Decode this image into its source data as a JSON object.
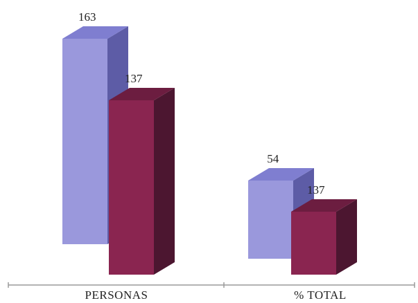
{
  "chart_data": {
    "type": "bar",
    "style": "3d-clustered-column",
    "categories": [
      "PERSONAS",
      "% TOTAL"
    ],
    "series": [
      {
        "values": [
          163,
          54
        ],
        "labels": [
          "163",
          "54"
        ],
        "color": "#9a98dc",
        "side_color": "#5d5ca6",
        "top_color": "#7f7ed0"
      },
      {
        "values": [
          137,
          137
        ],
        "labels": [
          "137",
          "137"
        ],
        "color": "#8a2550",
        "side_color": "#4c1630",
        "top_color": "#6c1d40"
      }
    ],
    "title": "",
    "xlabel": "",
    "ylabel": "",
    "grid": false,
    "legend": "none"
  }
}
